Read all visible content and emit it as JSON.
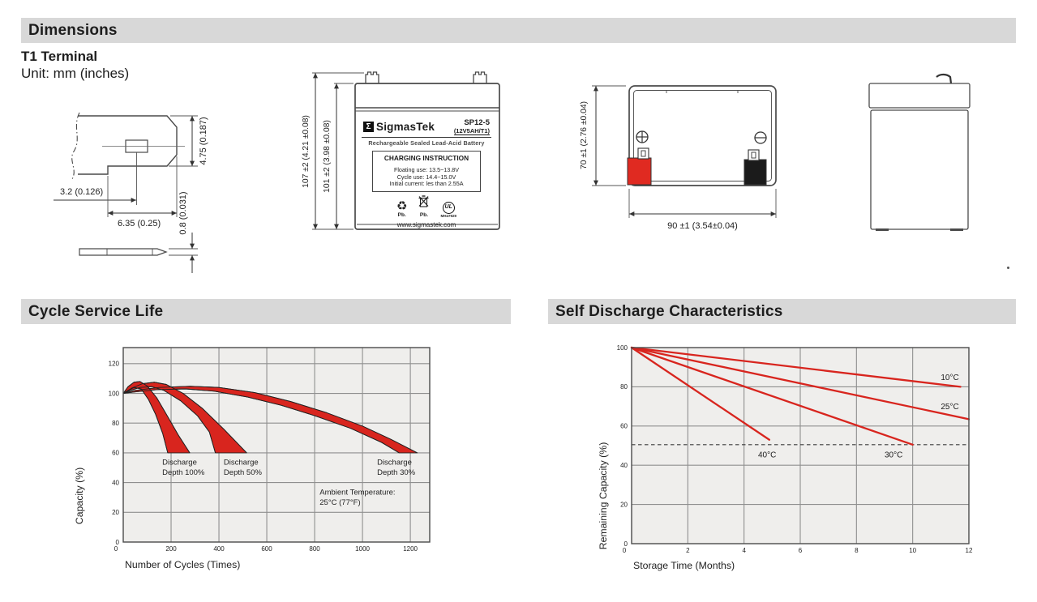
{
  "sections": {
    "dimensions": {
      "title": "Dimensions"
    },
    "cycle_service_life": {
      "title": "Cycle Service Life"
    },
    "self_discharge": {
      "title": "Self Discharge Characteristics"
    }
  },
  "terminal_drawing": {
    "title": "T1 Terminal",
    "unit": "Unit: mm (inches)",
    "dim_height": "4.75 (0.187)",
    "dim_hole_offset": "3.2 (0.126)",
    "dim_width": "6.35 (0.25)",
    "dim_thickness": "0.8 (0.031)"
  },
  "front_view": {
    "dim_overall_height": "107 ±2 (4.21 ±0.08)",
    "dim_case_height": "101 ±2 (3.98 ±0.08)",
    "label": {
      "logo_sigma": "Σ",
      "brand": "SigmasTek",
      "model": "SP12-5",
      "rating": "(12V5AH/T1)",
      "type_line": "Rechargeable Sealed Lead-Acid Battery",
      "charging_title": "CHARGING INSTRUCTION",
      "charging_lines": [
        "Floating use: 13.5~13.8V",
        "Cycle use: 14.4~15.0V",
        "Initial current: les than 2.55A"
      ],
      "icons": {
        "recycle": "♻"
      },
      "recycle_pb": "Pb.",
      "bin_pb": "Pb.",
      "ul_mark": "UL",
      "ul_code": "MH47929",
      "website": "www.sigmastek.com"
    }
  },
  "top_view": {
    "dim_width_side": "70 ±1 (2.76 ±0.04)",
    "dim_length": "90 ±1 (3.54±0.04)",
    "plus_symbol": "+",
    "minus_symbol": "−"
  },
  "chart_data": [
    {
      "type": "area",
      "title": "Cycle Service Life",
      "xlabel": "Number of Cycles (Times)",
      "ylabel": "Capacity (%)",
      "xlim": [
        0,
        1281
      ],
      "ylim": [
        0,
        130.8
      ],
      "xticks": [
        0,
        200,
        400,
        600,
        800,
        1000,
        1200
      ],
      "yticks": [
        0,
        20,
        40,
        60,
        80,
        100,
        120
      ],
      "grid": true,
      "legend_position": "none",
      "bands": [
        {
          "name": "Discharge Depth 100%",
          "upper": [
            [
              0,
              100
            ],
            [
              20,
              104.5
            ],
            [
              45,
              107.5
            ],
            [
              70,
              108
            ],
            [
              100,
              105
            ],
            [
              140,
              97
            ],
            [
              180,
              86
            ],
            [
              230,
              72
            ],
            [
              278,
              60
            ]
          ],
          "lower": [
            [
              0,
              100
            ],
            [
              20,
              102
            ],
            [
              45,
              104
            ],
            [
              75,
              103
            ],
            [
              105,
              96
            ],
            [
              135,
              86
            ],
            [
              165,
              73
            ],
            [
              186,
              60
            ]
          ]
        },
        {
          "name": "Discharge Depth 50%",
          "upper": [
            [
              0,
              100
            ],
            [
              35,
              103.5
            ],
            [
              80,
              106.5
            ],
            [
              130,
              107.5
            ],
            [
              180,
              106
            ],
            [
              250,
              100
            ],
            [
              330,
              90
            ],
            [
              420,
              76
            ],
            [
              516,
              60
            ]
          ],
          "lower": [
            [
              0,
              100
            ],
            [
              30,
              102
            ],
            [
              70,
              104
            ],
            [
              120,
              104.5
            ],
            [
              170,
              102
            ],
            [
              240,
              95
            ],
            [
              310,
              85
            ],
            [
              360,
              74
            ],
            [
              385,
              60
            ]
          ]
        },
        {
          "name": "Discharge Depth 30%",
          "upper": [
            [
              0,
              100
            ],
            [
              50,
              102
            ],
            [
              150,
              104
            ],
            [
              280,
              104.8
            ],
            [
              400,
              104
            ],
            [
              550,
              100.5
            ],
            [
              700,
              94.5
            ],
            [
              850,
              87
            ],
            [
              1000,
              78
            ],
            [
              1120,
              69
            ],
            [
              1229,
              60
            ]
          ],
          "lower": [
            [
              0,
              100
            ],
            [
              50,
              101
            ],
            [
              140,
              102.5
            ],
            [
              260,
              103
            ],
            [
              380,
              101.5
            ],
            [
              520,
              97.5
            ],
            [
              660,
              92
            ],
            [
              800,
              85
            ],
            [
              950,
              76.5
            ],
            [
              1080,
              67
            ],
            [
              1153,
              60
            ]
          ]
        }
      ],
      "annotations": [
        {
          "lines": [
            "Discharge",
            "Depth 100%"
          ],
          "x": 163,
          "y": 52
        },
        {
          "lines": [
            "Discharge",
            "Depth 50%"
          ],
          "x": 420,
          "y": 52
        },
        {
          "lines": [
            "Discharge",
            "Depth 30%"
          ],
          "x": 1061,
          "y": 52
        },
        {
          "lines": [
            "Ambient Temperature:",
            "25°C (77°F)"
          ],
          "x": 821,
          "y": 32
        }
      ],
      "colors": {
        "fill": "#d8251e",
        "edge": "#222222",
        "plot_bg": "#efeeec",
        "grid": "#8f8f8f",
        "border": "#4b4b4b"
      }
    },
    {
      "type": "line",
      "title": "Self Discharge Characteristics",
      "xlabel": "Storage Time (Months)",
      "ylabel": "Remaining Capacity (%)",
      "xlim": [
        0,
        12
      ],
      "ylim": [
        0,
        100
      ],
      "xticks": [
        0,
        2,
        4,
        6,
        8,
        10,
        12
      ],
      "yticks": [
        0,
        20,
        40,
        60,
        80,
        100
      ],
      "grid": true,
      "legend_position": "inline-labels",
      "series": [
        {
          "name": "10°C",
          "points": [
            [
              0,
              100
            ],
            [
              11.7,
              80
            ]
          ],
          "label_at": [
            11.0,
            83.5
          ]
        },
        {
          "name": "25°C",
          "points": [
            [
              0,
              100
            ],
            [
              12,
              63.5
            ]
          ],
          "label_at": [
            11.0,
            68.5
          ]
        },
        {
          "name": "30°C",
          "points": [
            [
              0,
              100
            ],
            [
              10,
              50.5
            ]
          ],
          "label_at": [
            9.0,
            44
          ]
        },
        {
          "name": "40°C",
          "points": [
            [
              0,
              100
            ],
            [
              4.9,
              53
            ]
          ],
          "label_at": [
            4.5,
            44
          ]
        }
      ],
      "reference_line": {
        "y": 50.5,
        "style": "dashed"
      },
      "colors": {
        "line": "#d8251e",
        "plot_bg": "#efeeec",
        "grid": "#8f8f8f",
        "border": "#4b4b4b",
        "dashed": "#3a3a3a"
      }
    }
  ]
}
